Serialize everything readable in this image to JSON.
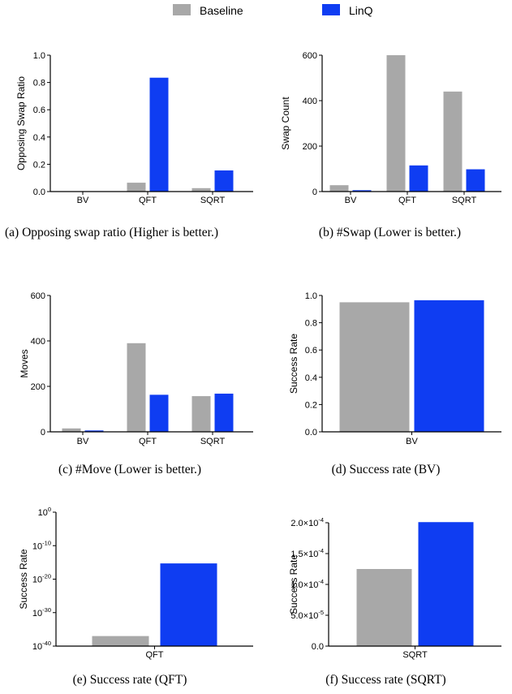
{
  "legend": {
    "entries": [
      {
        "label": "Baseline",
        "color": "#a8a8a8"
      },
      {
        "label": "LinQ",
        "color": "#0f3df2"
      }
    ]
  },
  "captions": {
    "a": "(a) Opposing swap ratio (Higher is better.)",
    "b": "(b) #Swap (Lower is better.)",
    "c": "(c) #Move (Lower is better.)",
    "d": "(d) Success rate (BV)",
    "e": "(e) Success rate (QFT)",
    "f": "(f) Success rate (SQRT)"
  },
  "chart_data": [
    {
      "id": "a",
      "type": "bar",
      "ylabel": "Opposing Swap Ratio",
      "categories": [
        "BV",
        "QFT",
        "SQRT"
      ],
      "series": [
        {
          "name": "Baseline",
          "values": [
            0.0,
            0.065,
            0.025
          ]
        },
        {
          "name": "LinQ",
          "values": [
            0.0,
            0.835,
            0.155
          ]
        }
      ],
      "ylim": [
        0,
        1.0
      ],
      "yticks": [
        0.0,
        0.2,
        0.4,
        0.6,
        0.8,
        1.0
      ],
      "ytick_labels": [
        "0.0",
        "0.2",
        "0.4",
        "0.6",
        "0.8",
        "1.0"
      ],
      "grid": false
    },
    {
      "id": "b",
      "type": "bar",
      "ylabel": "Swap Count",
      "categories": [
        "BV",
        "QFT",
        "SQRT"
      ],
      "series": [
        {
          "name": "Baseline",
          "values": [
            28,
            600,
            440
          ]
        },
        {
          "name": "LinQ",
          "values": [
            6,
            115,
            98
          ]
        }
      ],
      "ylim": [
        0,
        600
      ],
      "yticks": [
        0,
        200,
        400,
        600
      ],
      "ytick_labels": [
        "0",
        "200",
        "400",
        "600"
      ],
      "grid": false
    },
    {
      "id": "c",
      "type": "bar",
      "ylabel": "Moves",
      "categories": [
        "BV",
        "QFT",
        "SQRT"
      ],
      "series": [
        {
          "name": "Baseline",
          "values": [
            15,
            390,
            157
          ]
        },
        {
          "name": "LinQ",
          "values": [
            6,
            163,
            168
          ]
        }
      ],
      "ylim": [
        0,
        600
      ],
      "yticks": [
        0,
        200,
        400,
        600
      ],
      "ytick_labels": [
        "0",
        "200",
        "400",
        "600"
      ],
      "grid": false
    },
    {
      "id": "d",
      "type": "bar",
      "ylabel": "Success Rate",
      "categories": [
        "BV"
      ],
      "series": [
        {
          "name": "Baseline",
          "values": [
            0.95
          ]
        },
        {
          "name": "LinQ",
          "values": [
            0.965
          ]
        }
      ],
      "ylim": [
        0,
        1.0
      ],
      "yticks": [
        0.0,
        0.2,
        0.4,
        0.6,
        0.8,
        1.0
      ],
      "ytick_labels": [
        "0.0",
        "0.2",
        "0.4",
        "0.6",
        "0.8",
        "1.0"
      ],
      "grid": false
    },
    {
      "id": "e",
      "type": "bar",
      "ylabel": "Success Rate",
      "categories": [
        "QFT"
      ],
      "series": [
        {
          "name": "Baseline",
          "values": [
            1e-37
          ]
        },
        {
          "name": "LinQ",
          "values": [
            5e-16
          ]
        }
      ],
      "yscale": "log",
      "ylim": [
        1e-40,
        1
      ],
      "yticks": [
        1,
        1e-10,
        1e-20,
        1e-30,
        1e-40
      ],
      "ytick_labels": [
        {
          "base": "10",
          "exp": "0"
        },
        {
          "base": "10",
          "exp": "-10"
        },
        {
          "base": "10",
          "exp": "-20"
        },
        {
          "base": "10",
          "exp": "-30"
        },
        {
          "base": "10",
          "exp": "-40"
        }
      ],
      "grid": false
    },
    {
      "id": "f",
      "type": "bar",
      "ylabel": "Success Rate",
      "categories": [
        "SQRT"
      ],
      "series": [
        {
          "name": "Baseline",
          "values": [
            0.000125
          ]
        },
        {
          "name": "LinQ",
          "values": [
            0.000201
          ]
        }
      ],
      "ylim": [
        0,
        0.0002
      ],
      "yticks": [
        0,
        5e-05,
        0.0001,
        0.00015,
        0.0002
      ],
      "ytick_labels": [
        {
          "base": "0.0",
          "exp": ""
        },
        {
          "base": "5.0×10",
          "exp": "-5"
        },
        {
          "base": "1.0×10",
          "exp": "-4"
        },
        {
          "base": "1.5×10",
          "exp": "-4"
        },
        {
          "base": "2.0×10",
          "exp": "-4"
        }
      ],
      "grid": false
    }
  ]
}
